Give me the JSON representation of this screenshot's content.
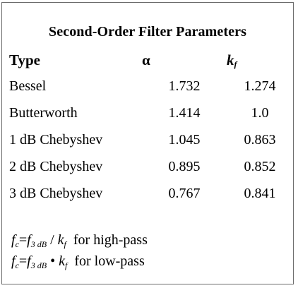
{
  "title": "Second-Order Filter Parameters",
  "headers": {
    "type": "Type",
    "alpha": "α",
    "kf_main": "k",
    "kf_sub": "f"
  },
  "rows": [
    {
      "type": "Bessel",
      "alpha": "1.732",
      "kf": "1.274"
    },
    {
      "type": "Butterworth",
      "alpha": "1.414",
      "kf": "1.0"
    },
    {
      "type": "1 dB Chebyshev",
      "alpha": "1.045",
      "kf": "0.863"
    },
    {
      "type": "2 dB Chebyshev",
      "alpha": "0.895",
      "kf": "0.852"
    },
    {
      "type": "3 dB Chebyshev",
      "alpha": "0.767",
      "kf": "0.841"
    }
  ],
  "formulas": [
    {
      "lhs": "f",
      "lhs_sub": "c",
      "eq": "=",
      "f": "f",
      "f_sub": "3 dB",
      "op": " / ",
      "k": "k",
      "k_sub": "f",
      "note": "  for high-pass"
    },
    {
      "lhs": "f",
      "lhs_sub": "c",
      "eq": "=",
      "f": "f",
      "f_sub": "3 dB",
      "op": " • ",
      "k": "k",
      "k_sub": "f",
      "note": "  for low-pass"
    }
  ]
}
